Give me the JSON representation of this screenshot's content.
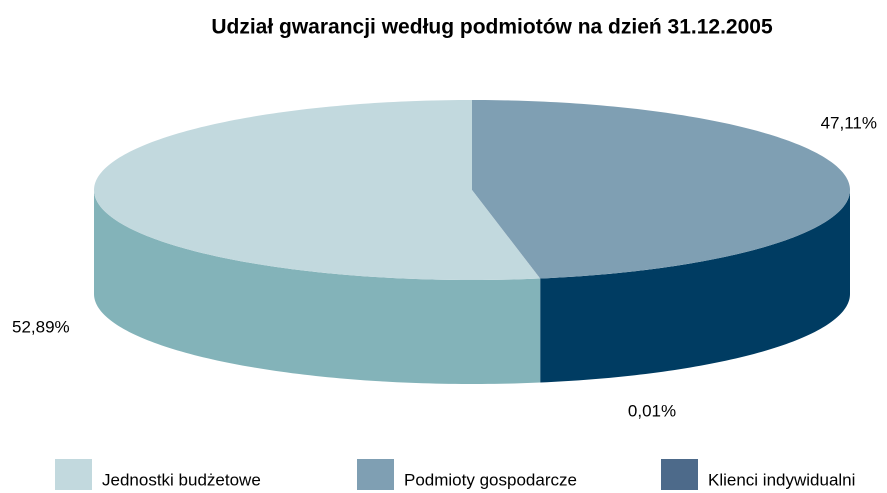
{
  "chart_data": {
    "type": "pie3d",
    "title": "Udział gwarancji według podmiotów na dzień 31.12.2005",
    "categories": [
      "Jednostki budżetowe",
      "Podmioty gospodarcze",
      "Klienci indywidualni"
    ],
    "values": [
      52.89,
      47.11,
      0.01
    ],
    "value_labels": [
      "52,89%",
      "47,11%",
      "0,01%"
    ],
    "colors": [
      "#c2d9de",
      "#7f9fb3",
      "#4d6a8a"
    ],
    "side_colors": [
      "#83b3b9",
      "#003c62",
      "#003c62"
    ],
    "legend": "bottom"
  }
}
